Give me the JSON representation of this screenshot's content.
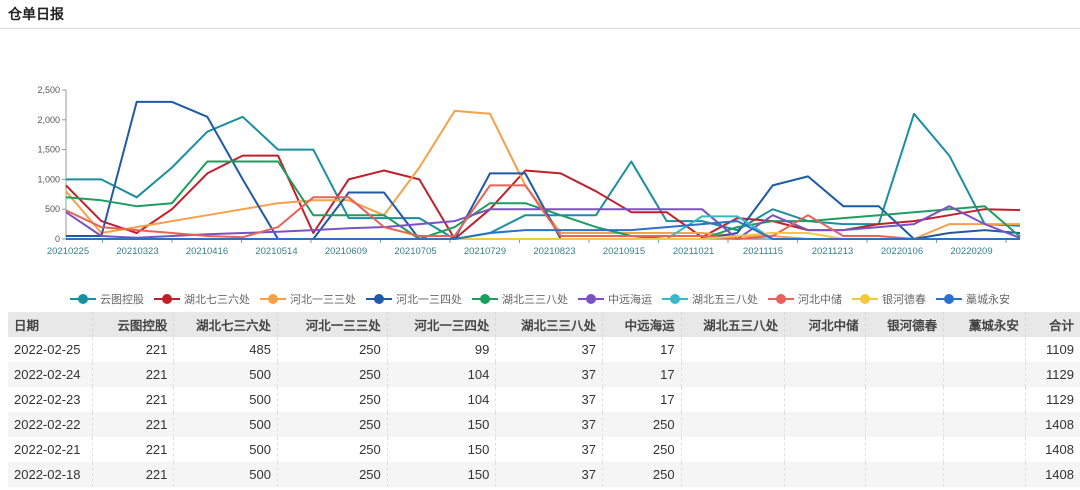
{
  "header": {
    "title": "仓单日报"
  },
  "colors": {
    "云图控股": "#1a8fa0",
    "湖北七三六处": "#c0202a",
    "河北一三三处": "#f7a04a",
    "河北一三四处": "#1f5aa8",
    "湖北三三八处": "#1e9e5e",
    "中远海运": "#7b52c4",
    "湖北五三八处": "#3ab8c8",
    "河北中储": "#e8625a",
    "银河德春": "#f5c842",
    "藁城永安": "#2a72c8"
  },
  "legend": [
    {
      "label": "云图控股",
      "color": "#1a8fa0"
    },
    {
      "label": "湖北七三六处",
      "color": "#c0202a"
    },
    {
      "label": "河北一三三处",
      "color": "#f7a04a"
    },
    {
      "label": "河北一三四处",
      "color": "#1f5aa8"
    },
    {
      "label": "湖北三三八处",
      "color": "#1e9e5e"
    },
    {
      "label": "中远海运",
      "color": "#7b52c4"
    },
    {
      "label": "湖北五三八处",
      "color": "#3ab8c8"
    },
    {
      "label": "河北中储",
      "color": "#e8625a"
    },
    {
      "label": "银河德春",
      "color": "#f5c842"
    },
    {
      "label": "藁城永安",
      "color": "#2a72c8"
    }
  ],
  "table": {
    "headers": [
      "日期",
      "云图控股",
      "湖北七三六处",
      "河北一三三处",
      "河北一三四处",
      "湖北三三八处",
      "中远海运",
      "湖北五三八处",
      "河北中储",
      "银河德春",
      "藁城永安",
      "合计"
    ],
    "rows": [
      [
        "2022-02-25",
        "221",
        "485",
        "250",
        "99",
        "37",
        "17",
        "",
        "",
        "",
        "",
        "1109"
      ],
      [
        "2022-02-24",
        "221",
        "500",
        "250",
        "104",
        "37",
        "17",
        "",
        "",
        "",
        "",
        "1129"
      ],
      [
        "2022-02-23",
        "221",
        "500",
        "250",
        "104",
        "37",
        "17",
        "",
        "",
        "",
        "",
        "1129"
      ],
      [
        "2022-02-22",
        "221",
        "500",
        "250",
        "150",
        "37",
        "250",
        "",
        "",
        "",
        "",
        "1408"
      ],
      [
        "2022-02-21",
        "221",
        "500",
        "250",
        "150",
        "37",
        "250",
        "",
        "",
        "",
        "",
        "1408"
      ],
      [
        "2022-02-18",
        "221",
        "500",
        "250",
        "150",
        "37",
        "250",
        "",
        "",
        "",
        "",
        "1408"
      ]
    ]
  },
  "chart_data": {
    "type": "line",
    "title": "",
    "xlabel": "",
    "ylabel": "",
    "ylim": [
      0,
      2500
    ],
    "yticks": [
      "0",
      "500",
      "1,000",
      "1,500",
      "2,000",
      "2,500"
    ],
    "xticks": [
      "20210225",
      "20210323",
      "20210416",
      "20210514",
      "20210609",
      "20210705",
      "20210729",
      "20210823",
      "20210915",
      "20211021",
      "20211115",
      "20211213",
      "20220106",
      "20220209"
    ],
    "grid": false,
    "legend_position": "bottom",
    "x": [
      "20210225",
      "20210310",
      "20210323",
      "20210405",
      "20210416",
      "20210430",
      "20210514",
      "20210528",
      "20210609",
      "20210621",
      "20210705",
      "20210717",
      "20210729",
      "20210810",
      "20210823",
      "20210903",
      "20210915",
      "20211005",
      "20211021",
      "20211103",
      "20211115",
      "20211130",
      "20211213",
      "20211224",
      "20220106",
      "20220120",
      "20220209",
      "20220225"
    ],
    "series": [
      {
        "name": "云图控股",
        "values": [
          1000,
          1000,
          700,
          1200,
          1800,
          2050,
          1500,
          1500,
          350,
          350,
          350,
          0,
          100,
          400,
          400,
          400,
          1300,
          300,
          300,
          150,
          500,
          300,
          250,
          250,
          2100,
          1400,
          250,
          221
        ]
      },
      {
        "name": "湖北七三六处",
        "values": [
          900,
          300,
          100,
          500,
          1100,
          1400,
          1400,
          100,
          1000,
          1150,
          1000,
          0,
          500,
          1150,
          1100,
          800,
          450,
          450,
          30,
          350,
          300,
          150,
          150,
          250,
          300,
          400,
          500,
          485
        ]
      },
      {
        "name": "河北一三三处",
        "values": [
          800,
          100,
          200,
          300,
          400,
          500,
          600,
          650,
          650,
          400,
          1200,
          2150,
          2100,
          900,
          100,
          100,
          100,
          100,
          100,
          50,
          50,
          0,
          0,
          0,
          0,
          250,
          250,
          250
        ]
      },
      {
        "name": "河北一三四处",
        "values": [
          50,
          50,
          2300,
          2300,
          2050,
          1000,
          0,
          0,
          780,
          780,
          0,
          0,
          1100,
          1100,
          0,
          0,
          0,
          0,
          0,
          100,
          900,
          1050,
          550,
          550,
          0,
          100,
          150,
          99
        ]
      },
      {
        "name": "湖北三三八处",
        "values": [
          700,
          650,
          550,
          600,
          1300,
          1300,
          1300,
          400,
          400,
          400,
          0,
          200,
          600,
          600,
          400,
          200,
          50,
          0,
          0,
          200,
          300,
          300,
          350,
          400,
          450,
          500,
          550,
          37
        ]
      },
      {
        "name": "中远海运",
        "values": [
          450,
          50,
          20,
          50,
          80,
          100,
          120,
          150,
          180,
          200,
          250,
          300,
          500,
          500,
          500,
          500,
          500,
          500,
          500,
          0,
          400,
          150,
          150,
          200,
          250,
          550,
          250,
          17
        ]
      },
      {
        "name": "湖北五三八处",
        "values": [
          0,
          0,
          0,
          0,
          0,
          0,
          0,
          0,
          0,
          0,
          0,
          0,
          0,
          0,
          0,
          0,
          0,
          0,
          380,
          380,
          0,
          0,
          0,
          0,
          0,
          0,
          0,
          0
        ]
      },
      {
        "name": "河北中储",
        "values": [
          480,
          200,
          150,
          100,
          50,
          30,
          200,
          700,
          700,
          200,
          50,
          50,
          900,
          900,
          50,
          50,
          50,
          50,
          50,
          0,
          50,
          400,
          50,
          50,
          0,
          0,
          0,
          0
        ]
      },
      {
        "name": "银河德春",
        "values": [
          0,
          0,
          0,
          0,
          0,
          0,
          0,
          0,
          0,
          0,
          0,
          0,
          0,
          0,
          0,
          0,
          0,
          0,
          0,
          50,
          100,
          100,
          0,
          0,
          0,
          0,
          0,
          0
        ]
      },
      {
        "name": "藁城永安",
        "values": [
          0,
          0,
          0,
          0,
          0,
          0,
          0,
          0,
          0,
          0,
          0,
          0,
          100,
          150,
          150,
          150,
          150,
          200,
          250,
          300,
          0,
          0,
          0,
          0,
          0,
          0,
          0,
          0
        ]
      }
    ]
  }
}
